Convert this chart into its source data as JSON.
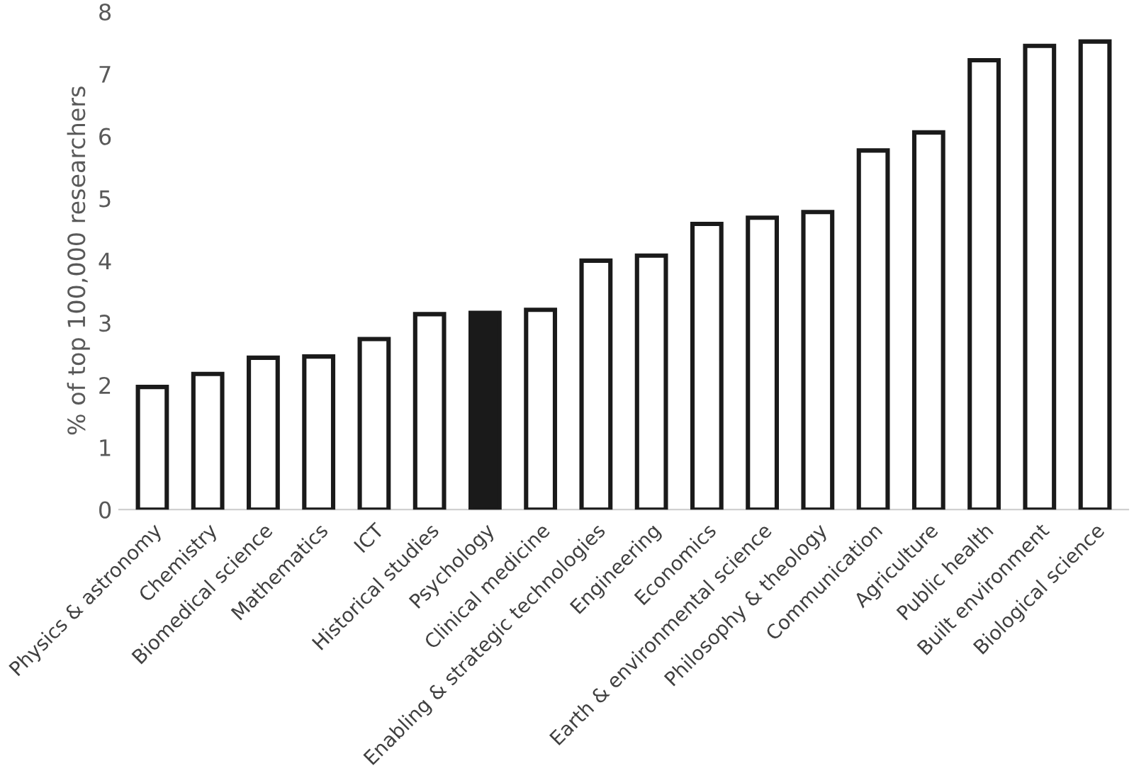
{
  "chart_data": {
    "type": "bar",
    "ylabel": "% of top 100,000 researchers",
    "categories": [
      "Physics & astronomy",
      "Chemistry",
      "Biomedical science",
      "Mathematics",
      "ICT",
      "Historical studies",
      "Psychology",
      "Clinical medicine",
      "Enabling & strategic technologies",
      "Engineering",
      "Economics",
      "Earth & environmental science",
      "Philosophy & theology",
      "Communication",
      "Agriculture",
      "Public health",
      "Built environment",
      "Biological science"
    ],
    "values": [
      1.97,
      2.18,
      2.44,
      2.46,
      2.74,
      3.14,
      3.16,
      3.21,
      4.0,
      4.08,
      4.59,
      4.69,
      4.78,
      5.77,
      6.06,
      7.22,
      7.45,
      7.52
    ],
    "colors": [
      "#ffffff",
      "#ffffff",
      "#ffffff",
      "#ffffff",
      "#ffffff",
      "#ffffff",
      "#1a1a1a",
      "#ffffff",
      "#ffffff",
      "#ffffff",
      "#ffffff",
      "#ffffff",
      "#ffffff",
      "#ffffff",
      "#ffffff",
      "#ffffff",
      "#ffffff",
      "#ffffff"
    ],
    "ylim": [
      0,
      8
    ],
    "yticks": [
      0,
      1,
      2,
      3,
      4,
      5,
      6,
      7,
      8
    ],
    "grid": false,
    "legend": false
  }
}
